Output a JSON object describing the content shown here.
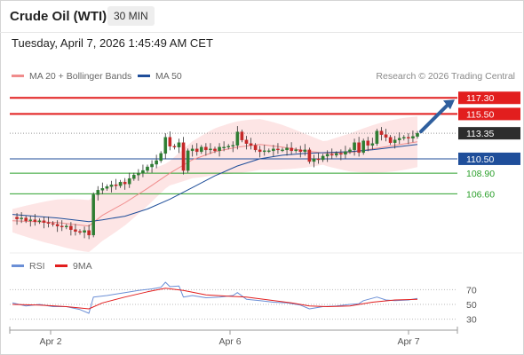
{
  "header": {
    "title": "Crude Oil (WTI)",
    "timeframe": "30 MIN",
    "timestamp": "Tuesday, April 7, 2026 1:45:49 AM CET"
  },
  "legend": {
    "items": [
      {
        "label": "MA 20 + Bollinger Bands",
        "color": "#f08c8c"
      },
      {
        "label": "MA 50",
        "color": "#1f4e9a"
      }
    ],
    "credit": "Research © 2026 Trading Central"
  },
  "oscillator_legend": {
    "items": [
      {
        "label": "RSI",
        "color": "#6b8fd6"
      },
      {
        "label": "9MA",
        "color": "#e21e1e"
      }
    ]
  },
  "colors": {
    "resistance": "#e21e1e",
    "support": "#1f4e9a",
    "target": "#2ca02c",
    "last_price": "#2d2d2d",
    "candle_up": "#2e7d32",
    "candle_down": "#c62828",
    "bollinger": "#fde5e5",
    "arrow": "#2f5f9e"
  },
  "chart_data": [
    {
      "type": "candlestick",
      "title": "Crude Oil (WTI)",
      "timeframe": "30 MIN",
      "x_ticks": [
        "Apr 2",
        "Apr 6",
        "Apr 7"
      ],
      "ylim": [
        100.5,
        119.5
      ],
      "levels": [
        {
          "value": 117.3,
          "label": "117.30",
          "kind": "resistance"
        },
        {
          "value": 115.5,
          "label": "115.50",
          "kind": "resistance"
        },
        {
          "value": 113.35,
          "label": "113.35",
          "kind": "last_price"
        },
        {
          "value": 110.5,
          "label": "110.50",
          "kind": "support"
        },
        {
          "value": 108.9,
          "label": "108.90",
          "kind": "target"
        },
        {
          "value": 106.6,
          "label": "106.60",
          "kind": "target"
        }
      ],
      "arrow": {
        "from": 113.35,
        "to": 117.3,
        "direction": "up"
      },
      "series": [
        {
          "name": "Price",
          "close_path": [
            [
              0,
              104.0
            ],
            [
              2,
              103.8
            ],
            [
              4,
              103.9
            ],
            [
              6,
              103.6
            ],
            [
              8,
              103.7
            ],
            [
              10,
              103.5
            ],
            [
              12,
              103.6
            ],
            [
              14,
              103.4
            ],
            [
              16,
              103.3
            ],
            [
              18,
              103.2
            ],
            [
              20,
              103.0
            ],
            [
              22,
              102.9
            ],
            [
              24,
              103.0
            ],
            [
              26,
              102.6
            ],
            [
              28,
              102.4
            ],
            [
              30,
              102.3
            ],
            [
              32,
              102.5
            ],
            [
              34,
              102.0
            ],
            [
              36,
              106.5
            ],
            [
              38,
              107.0
            ],
            [
              40,
              107.2
            ],
            [
              42,
              107.4
            ],
            [
              44,
              107.6
            ],
            [
              46,
              107.5
            ],
            [
              48,
              107.9
            ],
            [
              50,
              107.7
            ],
            [
              52,
              108.3
            ],
            [
              54,
              108.7
            ],
            [
              56,
              108.9
            ],
            [
              58,
              109.2
            ],
            [
              60,
              109.6
            ],
            [
              62,
              109.9
            ],
            [
              64,
              110.3
            ],
            [
              66,
              111.1
            ],
            [
              68,
              112.9
            ],
            [
              70,
              111.9
            ],
            [
              72,
              111.8
            ],
            [
              74,
              112.3
            ],
            [
              76,
              109.2
            ],
            [
              78,
              111.4
            ],
            [
              80,
              111.6
            ],
            [
              82,
              111.3
            ],
            [
              84,
              111.8
            ],
            [
              86,
              111.5
            ],
            [
              88,
              111.6
            ],
            [
              90,
              111.4
            ],
            [
              92,
              111.8
            ],
            [
              94,
              111.8
            ],
            [
              96,
              111.9
            ],
            [
              98,
              112.0
            ],
            [
              100,
              113.5
            ],
            [
              102,
              112.6
            ],
            [
              104,
              112.2
            ],
            [
              106,
              112.0
            ],
            [
              108,
              111.5
            ],
            [
              110,
              111.3
            ],
            [
              112,
              111.4
            ],
            [
              114,
              111.4
            ],
            [
              116,
              111.6
            ],
            [
              118,
              111.5
            ],
            [
              120,
              111.5
            ],
            [
              122,
              111.7
            ],
            [
              124,
              111.4
            ],
            [
              126,
              111.5
            ],
            [
              128,
              111.3
            ],
            [
              130,
              111.5
            ],
            [
              132,
              110.2
            ],
            [
              134,
              110.5
            ],
            [
              136,
              110.4
            ],
            [
              138,
              110.8
            ],
            [
              140,
              111.0
            ],
            [
              142,
              110.9
            ],
            [
              144,
              111.1
            ],
            [
              146,
              111.0
            ],
            [
              148,
              111.3
            ],
            [
              150,
              111.5
            ],
            [
              152,
              112.3
            ],
            [
              154,
              111.2
            ],
            [
              156,
              112.5
            ],
            [
              158,
              112.0
            ],
            [
              160,
              112.2
            ],
            [
              162,
              113.6
            ],
            [
              164,
              113.2
            ],
            [
              166,
              112.9
            ],
            [
              168,
              112.3
            ],
            [
              170,
              112.6
            ],
            [
              172,
              112.8
            ],
            [
              174,
              112.9
            ],
            [
              176,
              112.8
            ],
            [
              178,
              113.0
            ],
            [
              180,
              113.35
            ]
          ]
        },
        {
          "name": "MA 20 + Bollinger Bands",
          "values": [
            [
              0,
              103.6
            ],
            [
              20,
              103.4
            ],
            [
              34,
              103.0
            ],
            [
              40,
              104.2
            ],
            [
              50,
              105.6
            ],
            [
              60,
              107.2
            ],
            [
              70,
              108.9
            ],
            [
              80,
              110.4
            ],
            [
              90,
              111.3
            ],
            [
              100,
              111.8
            ],
            [
              110,
              112.1
            ],
            [
              120,
              111.8
            ],
            [
              130,
              111.4
            ],
            [
              140,
              111.1
            ],
            [
              150,
              111.2
            ],
            [
              160,
              111.6
            ],
            [
              170,
              112.0
            ],
            [
              180,
              112.4
            ]
          ]
        },
        {
          "name": "MA 50",
          "values": [
            [
              0,
              104.3
            ],
            [
              20,
              103.9
            ],
            [
              34,
              103.5
            ],
            [
              40,
              103.7
            ],
            [
              50,
              104.1
            ],
            [
              60,
              104.9
            ],
            [
              70,
              106.0
            ],
            [
              80,
              107.3
            ],
            [
              90,
              108.6
            ],
            [
              100,
              109.7
            ],
            [
              110,
              110.5
            ],
            [
              120,
              110.9
            ],
            [
              130,
              111.1
            ],
            [
              140,
              111.2
            ],
            [
              150,
              111.3
            ],
            [
              160,
              111.5
            ],
            [
              170,
              111.8
            ],
            [
              180,
              112.1
            ]
          ]
        }
      ]
    },
    {
      "type": "line",
      "title": "RSI",
      "x_ticks": [
        "Apr 2",
        "Apr 6",
        "Apr 7"
      ],
      "ylim": [
        20,
        80
      ],
      "y_ticks": [
        70,
        50,
        30
      ],
      "series": [
        {
          "name": "RSI",
          "values": [
            [
              0,
              52
            ],
            [
              6,
              48
            ],
            [
              12,
              50
            ],
            [
              18,
              47
            ],
            [
              24,
              47
            ],
            [
              30,
              43
            ],
            [
              34,
              38
            ],
            [
              36,
              60
            ],
            [
              42,
              62
            ],
            [
              50,
              66
            ],
            [
              56,
              69
            ],
            [
              62,
              71
            ],
            [
              66,
              73
            ],
            [
              68,
              80
            ],
            [
              70,
              74
            ],
            [
              74,
              75
            ],
            [
              76,
              60
            ],
            [
              80,
              62
            ],
            [
              86,
              59
            ],
            [
              92,
              60
            ],
            [
              98,
              62
            ],
            [
              100,
              66
            ],
            [
              104,
              57
            ],
            [
              110,
              55
            ],
            [
              116,
              53
            ],
            [
              122,
              52
            ],
            [
              128,
              49
            ],
            [
              132,
              44
            ],
            [
              138,
              47
            ],
            [
              144,
              48
            ],
            [
              150,
              50
            ],
            [
              154,
              51
            ],
            [
              156,
              55
            ],
            [
              162,
              60
            ],
            [
              166,
              56
            ],
            [
              170,
              55
            ],
            [
              176,
              56
            ],
            [
              180,
              58
            ]
          ]
        },
        {
          "name": "9MA",
          "values": [
            [
              0,
              50
            ],
            [
              12,
              49
            ],
            [
              24,
              47
            ],
            [
              34,
              44
            ],
            [
              40,
              52
            ],
            [
              50,
              60
            ],
            [
              60,
              67
            ],
            [
              68,
              72
            ],
            [
              76,
              69
            ],
            [
              86,
              63
            ],
            [
              96,
              61
            ],
            [
              104,
              60
            ],
            [
              114,
              56
            ],
            [
              124,
              52
            ],
            [
              132,
              48
            ],
            [
              140,
              47
            ],
            [
              150,
              48
            ],
            [
              160,
              53
            ],
            [
              170,
              56
            ],
            [
              180,
              57
            ]
          ]
        }
      ]
    }
  ]
}
